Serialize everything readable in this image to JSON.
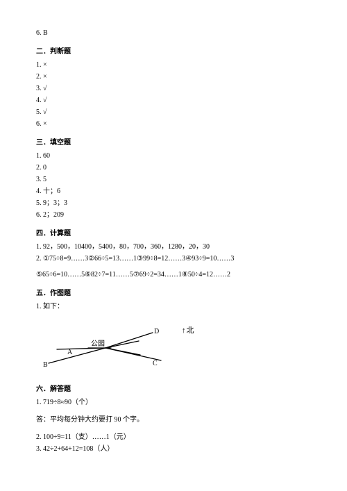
{
  "top_line": "6. B",
  "sec2": {
    "heading": "二．判断题",
    "items": [
      "1. ×",
      "2. ×",
      "3. √",
      "4. √",
      "5. √",
      "6. ×"
    ]
  },
  "sec3": {
    "heading": "三．填空题",
    "items": [
      "1. 60",
      "2. 0",
      "3. 5",
      "4. 十；6",
      "5. 9；3；3",
      "6. 2；209"
    ]
  },
  "sec4": {
    "heading": "四．计算题",
    "line1": "1. 92，500，10400，5400，80，700，360，1280，20，30",
    "line2": "2. ①75÷8=9……3②66÷5=13……1③99÷8=12……3④93÷9=10……3",
    "line3": "⑤65÷6=10……5⑥82÷7=11……5⑦69÷2=34……1⑧50÷4=12……2"
  },
  "sec5": {
    "heading": "五．作图题",
    "line1": "1. 如下："
  },
  "diagram": {
    "labels": {
      "A": "A",
      "B": "B",
      "C": "C",
      "D": "D",
      "park": "公园",
      "north": "↑北"
    },
    "stroke": "#000000",
    "stroke_width": 1.3
  },
  "sec6": {
    "heading": "六．解答题",
    "line1": "1. 719÷8≈90（个）",
    "line2": "答：平均每分钟大约要打 90 个字。",
    "line3": "2. 100÷9=11（支）……1（元）",
    "line4": "3. 42÷2+64+12=108（人）"
  }
}
